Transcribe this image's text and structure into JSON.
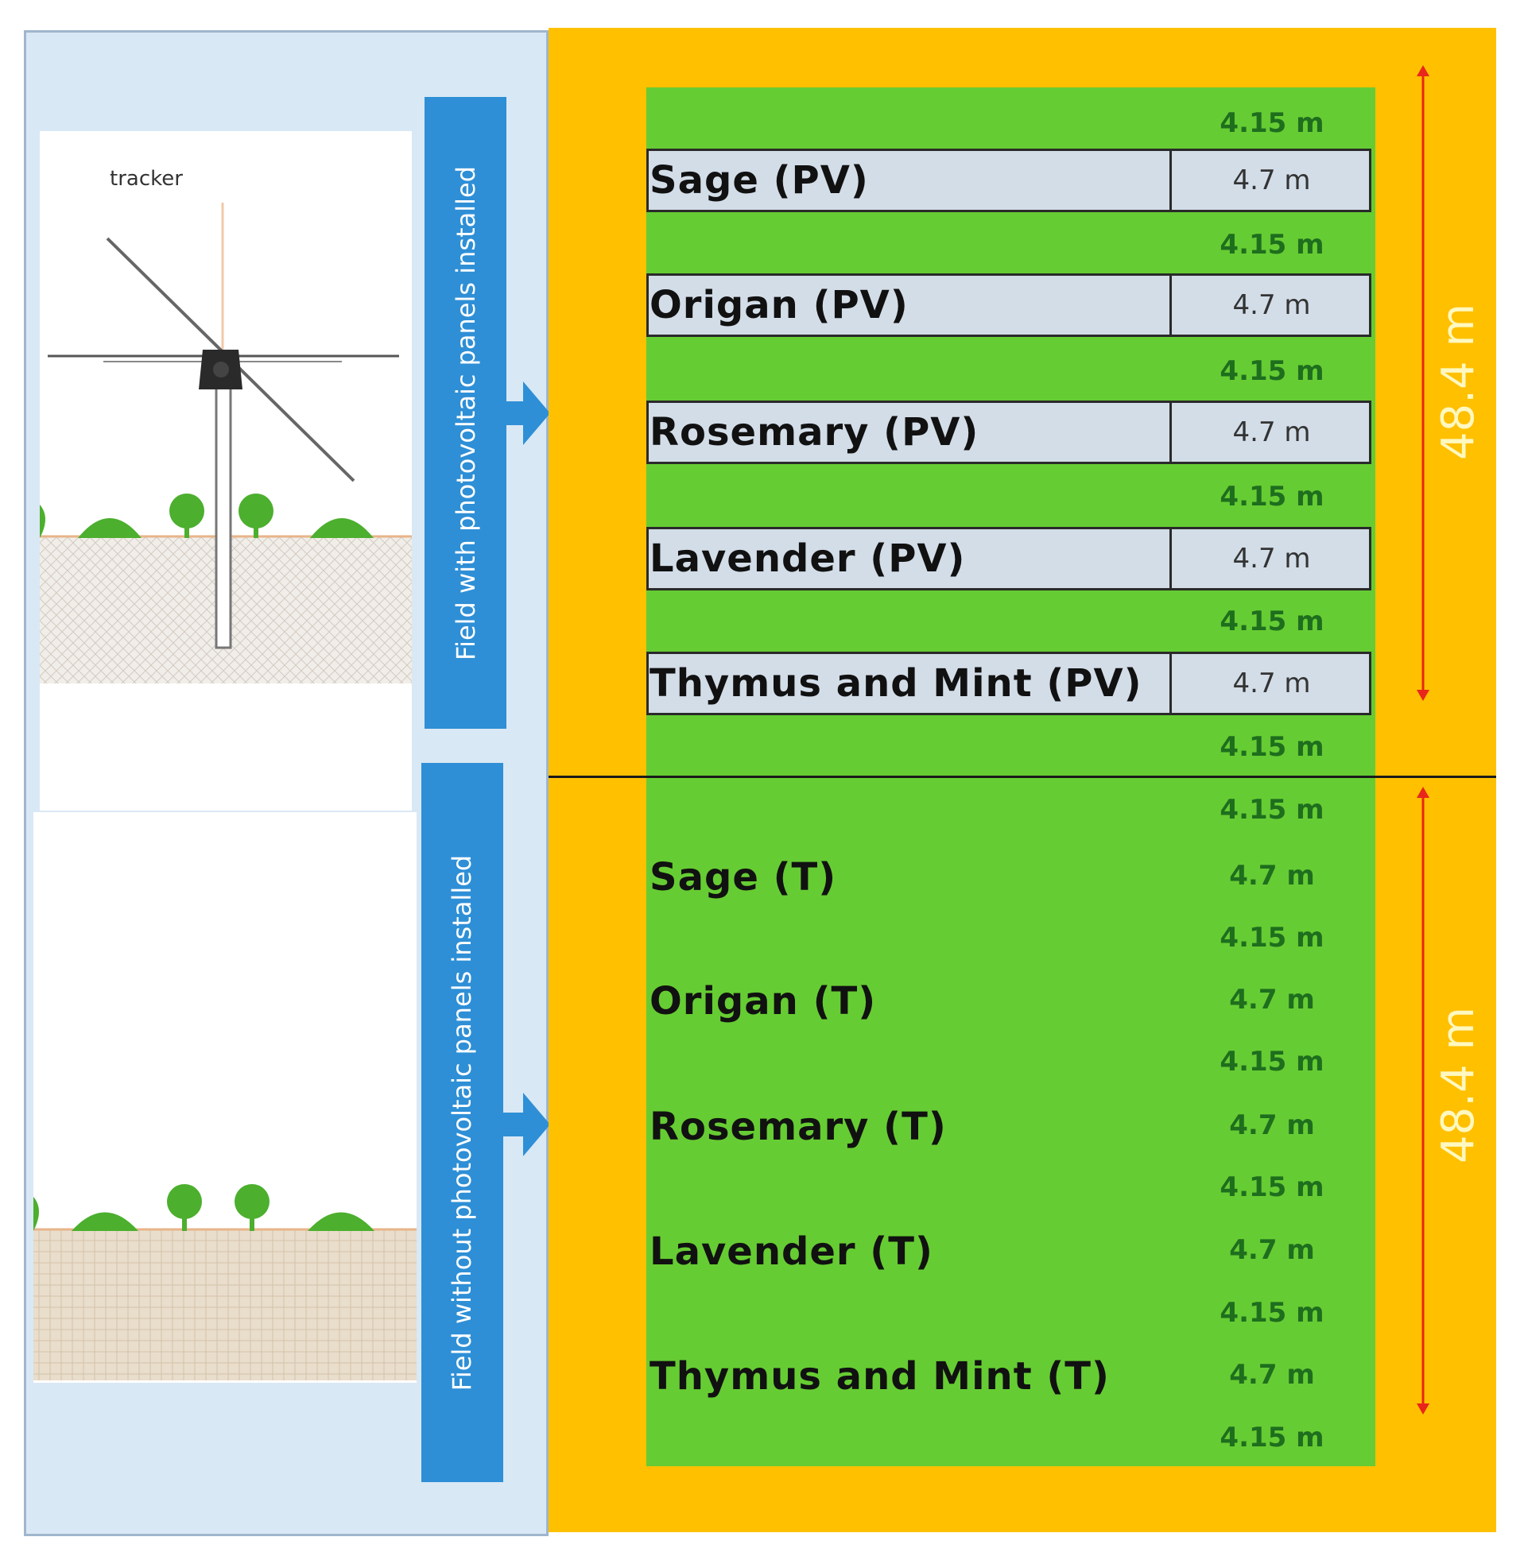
{
  "tracker_label": "tracker",
  "pv_field_label": "Field with photovoltaic panels installed",
  "open_field_label": "Field without photovoltaic panels installed",
  "field_length": "48.4 m",
  "spacing_label": "4.15 m",
  "crop_width_label": "4.7 m",
  "pv_crops": [
    {
      "name": "Sage (PV)"
    },
    {
      "name": "Origan (PV)"
    },
    {
      "name": "Rosemary (PV)"
    },
    {
      "name": "Lavender (PV)"
    },
    {
      "name": "Thymus and Mint (PV)"
    }
  ],
  "open_crops": [
    {
      "name": "Sage (T)"
    },
    {
      "name": "Origan (T)"
    },
    {
      "name": "Rosemary (T)"
    },
    {
      "name": "Lavender (T)"
    },
    {
      "name": "Thymus and Mint (T)"
    }
  ],
  "colors": {
    "field_border": "#ffc000",
    "crop_area": "#66cc33",
    "pv_band": "#d3dde8",
    "label_box": "#2e8fd6",
    "dimension_arrow": "#e8261b"
  }
}
